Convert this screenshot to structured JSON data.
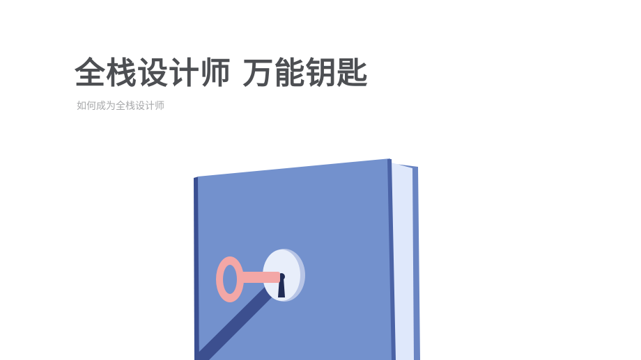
{
  "slide": {
    "title": "全栈设计师 万能钥匙",
    "subtitle": "如何成为全栈设计师"
  },
  "illustration": {
    "subject": "book-with-keyhole-and-key",
    "colors": {
      "cover": "#7391cd",
      "spine_dark": "#3a4f92",
      "pages": "#dfe8fb",
      "pages_edge": "#6a85c3",
      "keyhole_plate": "#e8eefa",
      "keyhole_rim": "#b8c5e6",
      "key": "#f3a7a6",
      "key_shadow": "#3c4f8f",
      "keyhole": "#1f2b55"
    }
  }
}
